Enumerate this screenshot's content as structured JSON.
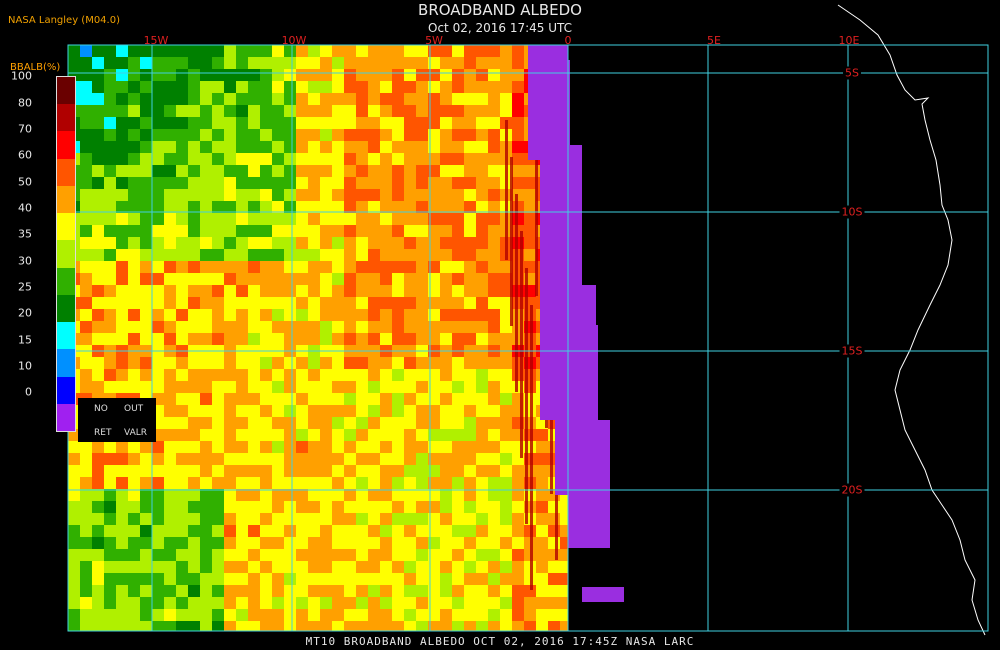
{
  "header": {
    "title": "BROADBAND ALBEDO",
    "subtitle": "Oct 02, 2016 17:45 UTC",
    "source": "NASA Langley (M04.0)"
  },
  "footer": {
    "text": "MT10  BROADBAND ALBEDO   OCT 02, 2016 17:45Z   NASA LARC"
  },
  "legend": {
    "title": "BBALB(%)",
    "ticks": [
      "100",
      "80",
      "70",
      "60",
      "50",
      "40",
      "35",
      "30",
      "25",
      "20",
      "15",
      "10",
      "0"
    ],
    "colors": [
      "#6a0000",
      "#b00000",
      "#ff0000",
      "#ff5500",
      "#ffa000",
      "#ffff00",
      "#b0f000",
      "#30b000",
      "#008000",
      "#00ffff",
      "#0090ff",
      "#0000ff",
      "#a020f0"
    ],
    "no_data": {
      "line1_left": "NO",
      "line1_right": "OUT",
      "line2_left": "RET",
      "line2_right": "VALR"
    }
  },
  "map": {
    "lon_labels": [
      "15W",
      "10W",
      "5W",
      "0",
      "5E",
      "10E"
    ],
    "lat_labels": [
      "5S",
      "10S",
      "15S",
      "20S"
    ],
    "grid_color": "#40d0e0",
    "label_color": "#e02020"
  }
}
